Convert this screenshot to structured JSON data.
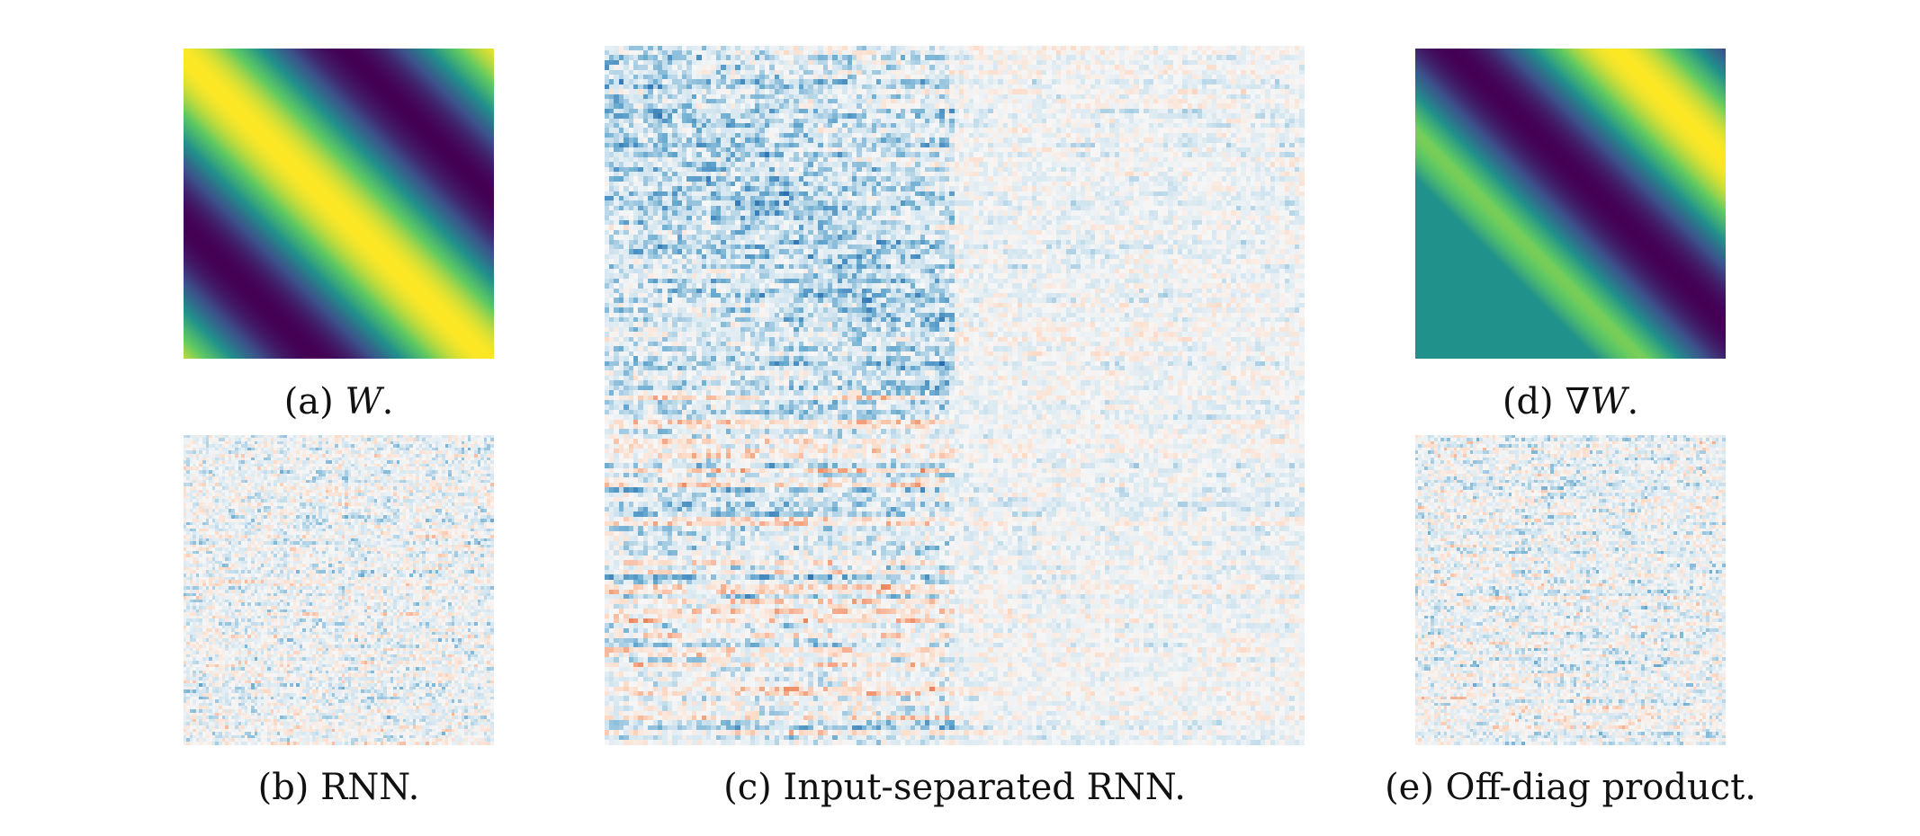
{
  "figure": {
    "panels": [
      {
        "id": "a",
        "kind": "smooth",
        "pattern": "anti-diagonal-sine",
        "colormap": "viridis"
      },
      {
        "id": "b",
        "kind": "noise",
        "colormap": "RdBu",
        "cells": 96
      },
      {
        "id": "c",
        "kind": "noise",
        "colormap": "RdBu",
        "cells": 144
      },
      {
        "id": "d",
        "kind": "smooth",
        "pattern": "anti-diagonal-gradient",
        "colormap": "viridis"
      },
      {
        "id": "e",
        "kind": "noise",
        "colormap": "RdBu",
        "cells": 96
      }
    ],
    "captions": {
      "a": {
        "prefix": "(a) ",
        "math": "W",
        "suffix": "."
      },
      "b": {
        "text": "(b) RNN."
      },
      "c": {
        "text": "(c) Input-separated RNN."
      },
      "d": {
        "prefix": "(d) ∇",
        "math": "W",
        "suffix": "."
      },
      "e": {
        "text": "(e) Off-diag product."
      }
    },
    "colors": {
      "viridis": [
        "#440154",
        "#3b528b",
        "#21918c",
        "#5ec962",
        "#fde725"
      ],
      "rdbu": [
        "#2166ac",
        "#67a9cf",
        "#d1e5f0",
        "#f7f7f7",
        "#fddbc7",
        "#ef8a62",
        "#b2182b"
      ]
    }
  }
}
